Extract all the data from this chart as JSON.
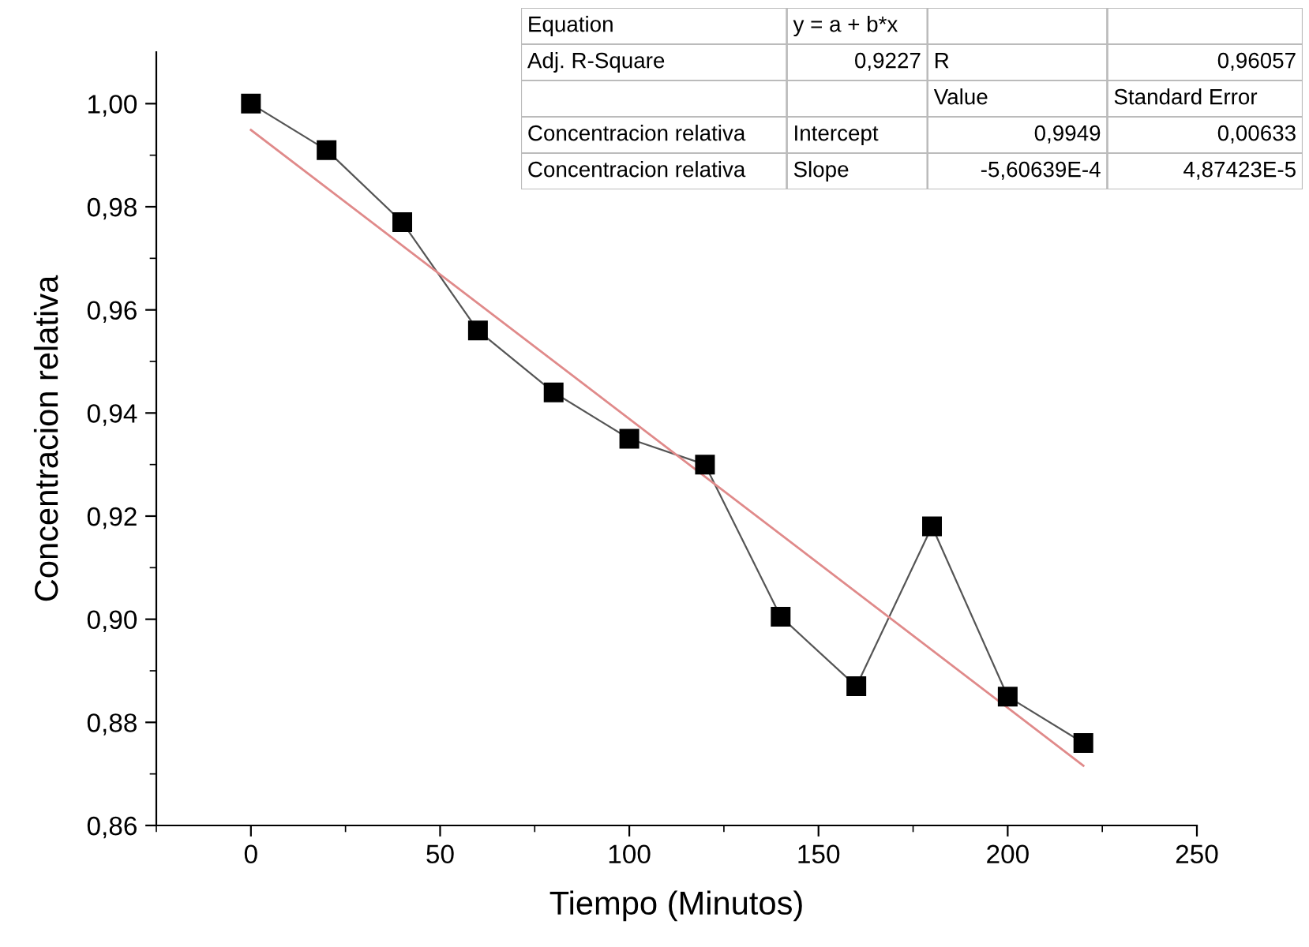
{
  "chart_data": {
    "type": "line",
    "xlabel": "Tiempo (Minutos)",
    "ylabel": "Concentracion relativa",
    "x": [
      0,
      20,
      40,
      60,
      80,
      100,
      120,
      140,
      160,
      180,
      200,
      220
    ],
    "series": [
      {
        "color": "#000000",
        "values": [
          1.0,
          0.991,
          0.977,
          0.956,
          0.944,
          0.935,
          0.93,
          0.9005,
          0.887,
          0.918,
          0.885,
          0.876
        ],
        "marker": "square"
      },
      {
        "color": "#e08a8a",
        "x": [
          0,
          220
        ],
        "values": [
          0.9949,
          0.8716
        ],
        "marker": "none"
      }
    ],
    "xlim": [
      -25,
      250
    ],
    "xticks": [
      0,
      50,
      100,
      150,
      200,
      250
    ],
    "ylim": [
      0.86,
      1.01
    ],
    "yticks": [
      {
        "value": 0.86,
        "label": "0,86"
      },
      {
        "value": 0.88,
        "label": "0,88"
      },
      {
        "value": 0.9,
        "label": "0,90"
      },
      {
        "value": 0.92,
        "label": "0,92"
      },
      {
        "value": 0.94,
        "label": "0,94"
      },
      {
        "value": 0.96,
        "label": "0,96"
      },
      {
        "value": 0.98,
        "label": "0,98"
      },
      {
        "value": 1.0,
        "label": "1,00"
      }
    ],
    "grid": false,
    "legend": false,
    "line_style": "solid",
    "annotations": [
      "Equation",
      "y = a + b*x",
      "Adj. R-Square",
      "0,9227",
      "R",
      "0,96057",
      "Value",
      "Standard Error",
      "Concentracion relativa",
      "Intercept",
      "0,9949",
      "0,00633",
      "Concentracion relativa",
      "Slope",
      "-5,60639E-4",
      "4,87423E-5"
    ]
  }
}
